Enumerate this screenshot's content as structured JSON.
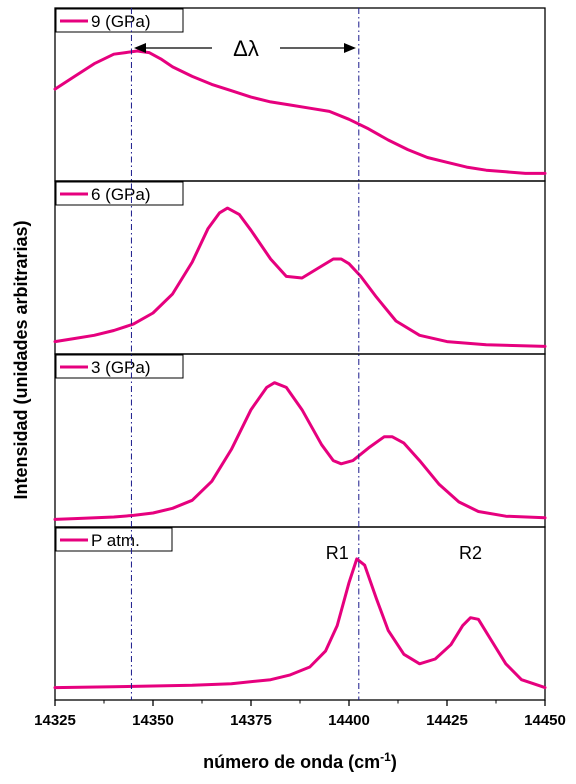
{
  "chart_data": {
    "type": "line",
    "xlabel": "número de onda (cm",
    "xlabel_sup": "-1",
    "xlabel_end": ")",
    "ylabel": "Intensidad (unidades arbitrarias)",
    "xlim": [
      14325,
      14450
    ],
    "x_ticks": [
      14325,
      14350,
      14375,
      14400,
      14425,
      14450
    ],
    "x_tick_labels": [
      "14325",
      "14350",
      "14375",
      "14400",
      "14425",
      "14450"
    ],
    "color": "#e6007e",
    "ref_line_color": "#1a1a8c",
    "ref_lines_x": [
      14344.5,
      14402.5
    ],
    "delta_label": "Δλ",
    "panels": [
      {
        "legend": "9 (GPa)",
        "points": [
          [
            14325,
            0.54
          ],
          [
            14330,
            0.62
          ],
          [
            14335,
            0.7
          ],
          [
            14340,
            0.76
          ],
          [
            14343,
            0.77
          ],
          [
            14346,
            0.78
          ],
          [
            14349,
            0.77
          ],
          [
            14352,
            0.73
          ],
          [
            14355,
            0.68
          ],
          [
            14360,
            0.62
          ],
          [
            14365,
            0.57
          ],
          [
            14370,
            0.53
          ],
          [
            14375,
            0.49
          ],
          [
            14380,
            0.46
          ],
          [
            14385,
            0.44
          ],
          [
            14390,
            0.42
          ],
          [
            14395,
            0.4
          ],
          [
            14400,
            0.35
          ],
          [
            14405,
            0.29
          ],
          [
            14410,
            0.22
          ],
          [
            14415,
            0.16
          ],
          [
            14420,
            0.11
          ],
          [
            14425,
            0.08
          ],
          [
            14430,
            0.05
          ],
          [
            14435,
            0.03
          ],
          [
            14440,
            0.02
          ],
          [
            14445,
            0.01
          ],
          [
            14450,
            0.01
          ]
        ]
      },
      {
        "legend": "6 (GPa)",
        "points": [
          [
            14325,
            0.04
          ],
          [
            14330,
            0.06
          ],
          [
            14335,
            0.08
          ],
          [
            14340,
            0.11
          ],
          [
            14345,
            0.15
          ],
          [
            14350,
            0.22
          ],
          [
            14355,
            0.34
          ],
          [
            14360,
            0.54
          ],
          [
            14364,
            0.75
          ],
          [
            14367,
            0.85
          ],
          [
            14369,
            0.88
          ],
          [
            14372,
            0.84
          ],
          [
            14375,
            0.74
          ],
          [
            14380,
            0.56
          ],
          [
            14384,
            0.45
          ],
          [
            14388,
            0.44
          ],
          [
            14392,
            0.5
          ],
          [
            14396,
            0.56
          ],
          [
            14398,
            0.56
          ],
          [
            14400,
            0.53
          ],
          [
            14403,
            0.45
          ],
          [
            14407,
            0.32
          ],
          [
            14412,
            0.17
          ],
          [
            14418,
            0.08
          ],
          [
            14425,
            0.04
          ],
          [
            14435,
            0.02
          ],
          [
            14450,
            0.01
          ]
        ]
      },
      {
        "legend": "3 (GPa)",
        "points": [
          [
            14325,
            0.01
          ],
          [
            14330,
            0.015
          ],
          [
            14340,
            0.025
          ],
          [
            14345,
            0.035
          ],
          [
            14350,
            0.05
          ],
          [
            14355,
            0.08
          ],
          [
            14360,
            0.13
          ],
          [
            14365,
            0.25
          ],
          [
            14370,
            0.45
          ],
          [
            14375,
            0.7
          ],
          [
            14379,
            0.84
          ],
          [
            14381,
            0.87
          ],
          [
            14384,
            0.84
          ],
          [
            14388,
            0.7
          ],
          [
            14393,
            0.48
          ],
          [
            14396,
            0.38
          ],
          [
            14398,
            0.36
          ],
          [
            14401,
            0.38
          ],
          [
            14405,
            0.46
          ],
          [
            14409,
            0.53
          ],
          [
            14411,
            0.53
          ],
          [
            14414,
            0.49
          ],
          [
            14418,
            0.38
          ],
          [
            14423,
            0.23
          ],
          [
            14428,
            0.12
          ],
          [
            14433,
            0.06
          ],
          [
            14440,
            0.03
          ],
          [
            14450,
            0.02
          ]
        ]
      },
      {
        "legend": "P atm.",
        "points": [
          [
            14325,
            0.04
          ],
          [
            14340,
            0.045
          ],
          [
            14350,
            0.05
          ],
          [
            14360,
            0.055
          ],
          [
            14370,
            0.065
          ],
          [
            14380,
            0.09
          ],
          [
            14385,
            0.12
          ],
          [
            14390,
            0.17
          ],
          [
            14394,
            0.27
          ],
          [
            14397,
            0.43
          ],
          [
            14400,
            0.7
          ],
          [
            14402,
            0.85
          ],
          [
            14404,
            0.81
          ],
          [
            14407,
            0.6
          ],
          [
            14410,
            0.4
          ],
          [
            14414,
            0.25
          ],
          [
            14418,
            0.19
          ],
          [
            14422,
            0.22
          ],
          [
            14426,
            0.31
          ],
          [
            14429,
            0.43
          ],
          [
            14431,
            0.48
          ],
          [
            14433,
            0.47
          ],
          [
            14436,
            0.35
          ],
          [
            14440,
            0.19
          ],
          [
            14444,
            0.09
          ],
          [
            14450,
            0.04
          ]
        ]
      }
    ],
    "annotations": [
      {
        "text": "R1",
        "x": 14397,
        "panel": 3
      },
      {
        "text": "R2",
        "x": 14431,
        "panel": 3
      }
    ]
  }
}
